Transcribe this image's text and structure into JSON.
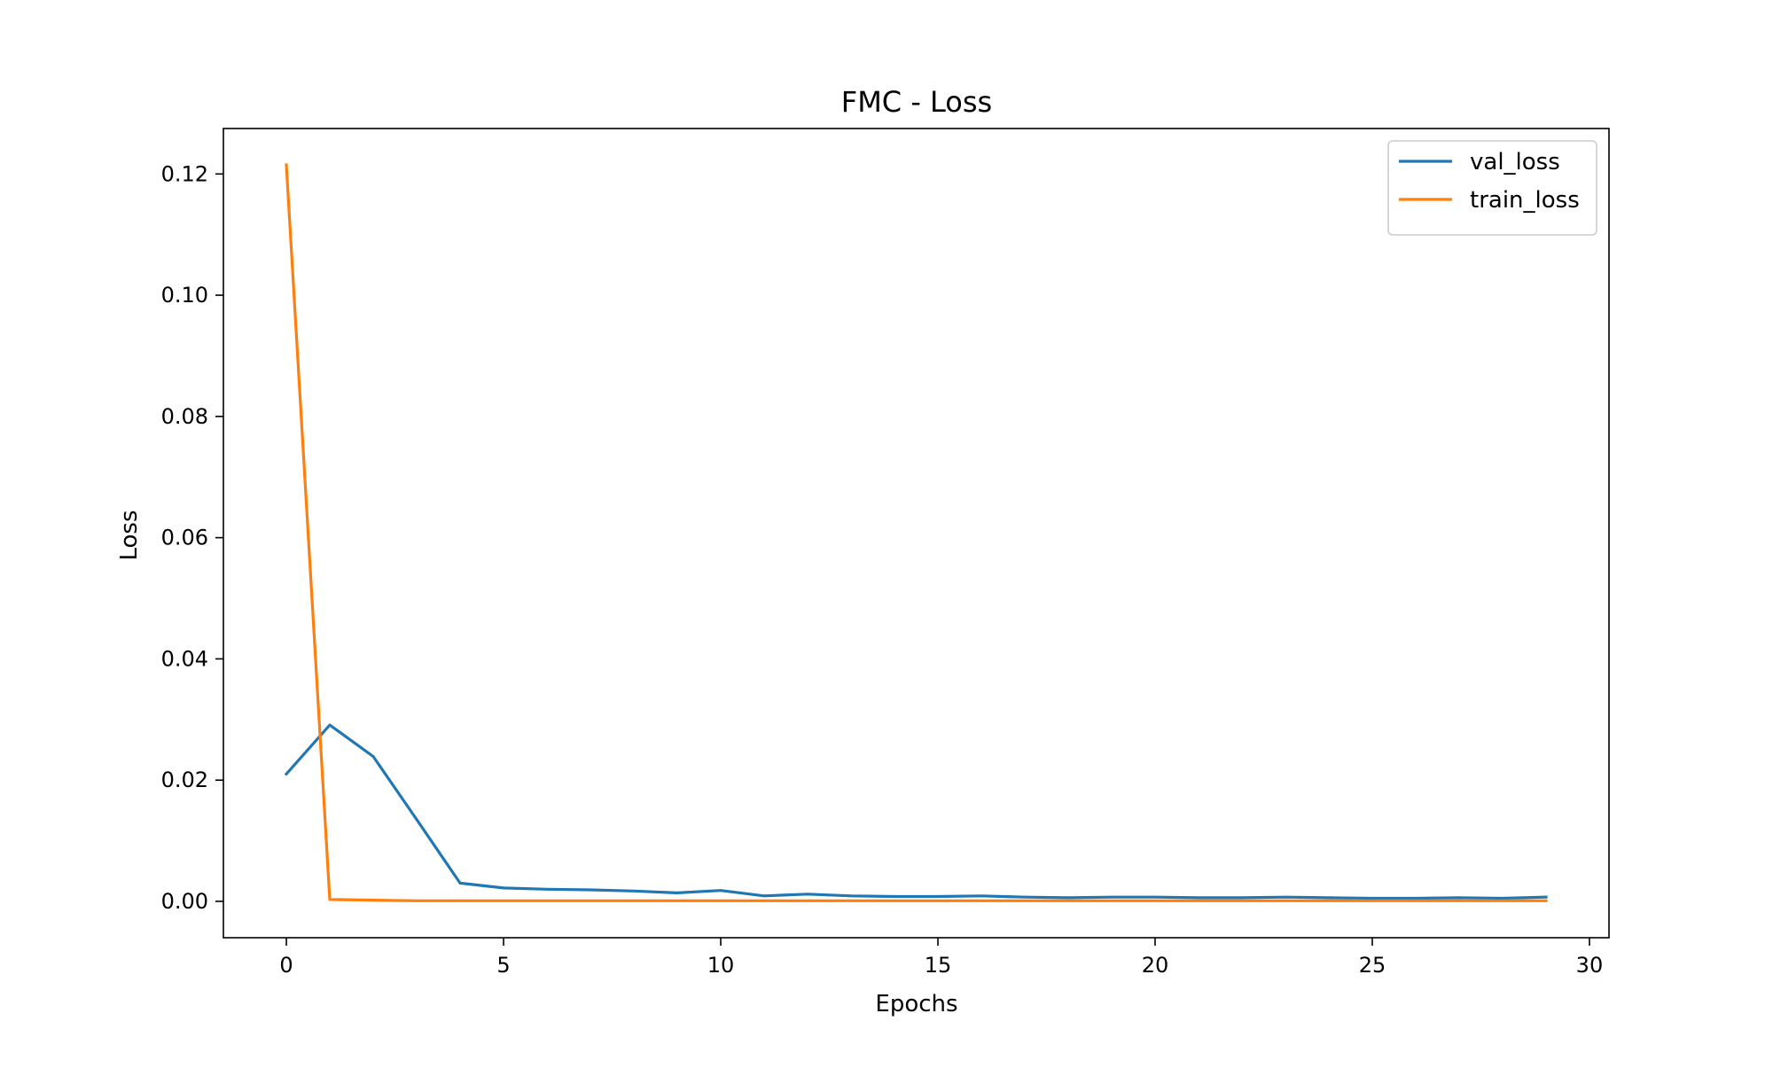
{
  "chart_data": {
    "type": "line",
    "title": "FMC - Loss",
    "xlabel": "Epochs",
    "ylabel": "Loss",
    "xlim": [
      -1.45,
      30.45
    ],
    "ylim": [
      -0.006,
      0.1275
    ],
    "xticks": [
      0,
      5,
      10,
      15,
      20,
      25,
      30
    ],
    "xtick_labels": [
      "0",
      "5",
      "10",
      "15",
      "20",
      "25",
      "30"
    ],
    "yticks": [
      0.0,
      0.02,
      0.04,
      0.06,
      0.08,
      0.1,
      0.12
    ],
    "ytick_labels": [
      "0.00",
      "0.02",
      "0.04",
      "0.06",
      "0.08",
      "0.10",
      "0.12"
    ],
    "grid": false,
    "legend_position": "top-right",
    "x": [
      0,
      1,
      2,
      3,
      4,
      5,
      6,
      7,
      8,
      9,
      10,
      11,
      12,
      13,
      14,
      15,
      16,
      17,
      18,
      19,
      20,
      21,
      22,
      23,
      24,
      25,
      26,
      27,
      28,
      29
    ],
    "series": [
      {
        "name": "val_loss",
        "color": "#1f77b4",
        "values": [
          0.021,
          0.0291,
          0.0239,
          0.0135,
          0.003,
          0.0022,
          0.002,
          0.0019,
          0.0017,
          0.0014,
          0.0018,
          0.0009,
          0.0012,
          0.0009,
          0.0008,
          0.0008,
          0.0009,
          0.0007,
          0.0006,
          0.0007,
          0.0007,
          0.0006,
          0.0006,
          0.0007,
          0.0006,
          0.0005,
          0.0005,
          0.0006,
          0.0005,
          0.0007
        ]
      },
      {
        "name": "train_loss",
        "color": "#ff7f0e",
        "values": [
          0.1215,
          0.0003,
          0.0002,
          0.0001,
          0.0001,
          0.0001,
          0.0001,
          0.0001,
          0.0001,
          0.0001,
          0.0001,
          0.0001,
          0.0001,
          0.0001,
          0.0001,
          0.0001,
          0.0001,
          0.0001,
          0.0001,
          0.0001,
          0.0001,
          0.0001,
          0.0001,
          0.0001,
          0.0001,
          0.0001,
          0.0001,
          0.0001,
          0.0001,
          0.0001
        ]
      }
    ]
  }
}
